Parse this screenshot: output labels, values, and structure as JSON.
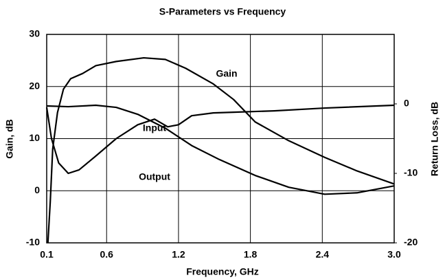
{
  "chart_data": {
    "type": "line",
    "title": "S-Parameters vs Frequency",
    "x_label": "Frequency, GHz",
    "y_label": "Gain, dB",
    "y2_label": "Return Loss, dB",
    "xlim": [
      0.1,
      3.0
    ],
    "xticks": [
      0.1,
      0.6,
      1.2,
      1.8,
      2.4,
      {
        "value": 3.0,
        "label": "3.0"
      }
    ],
    "ylim": [
      -10,
      30
    ],
    "yticks": [
      -10,
      0,
      10,
      20,
      30
    ],
    "y2lim": [
      -20,
      10
    ],
    "y2ticks": [
      -20,
      -10,
      0
    ],
    "grid": true,
    "series": [
      {
        "name": "Gain",
        "color": "#000000",
        "x": [
          0.11,
          0.13,
          0.15,
          0.19,
          0.24,
          0.3,
          0.4,
          0.51,
          0.68,
          0.91,
          1.09,
          1.26,
          1.49,
          1.66,
          1.84,
          2.12,
          2.42,
          2.69,
          3.0
        ],
        "values": [
          -10,
          -2,
          8,
          15,
          19.5,
          21.5,
          22.5,
          24,
          24.8,
          25.5,
          25.2,
          23.5,
          20.5,
          17.5,
          13.2,
          9.6,
          6.4,
          3.8,
          1.3
        ]
      },
      {
        "name": "Input",
        "color": "#000000",
        "axis": "y2",
        "x": [
          0.1,
          0.28,
          0.51,
          0.68,
          0.86,
          1.09,
          1.31,
          1.54,
          1.84,
          2.12,
          2.42,
          2.69,
          3.0
        ],
        "values": [
          -0.3,
          -0.4,
          -0.2,
          -0.5,
          -1.5,
          -3.5,
          -6,
          -8,
          -10.3,
          -12,
          -13,
          -12.8,
          -11.8
        ]
      },
      {
        "name": "Output",
        "color": "#000000",
        "axis": "y2",
        "x": [
          0.1,
          0.14,
          0.2,
          0.28,
          0.37,
          0.51,
          0.68,
          0.86,
          1.0,
          1.11,
          1.2,
          1.31,
          1.49,
          1.66,
          2.0,
          2.42,
          3.0
        ],
        "values": [
          -0.5,
          -5,
          -8.5,
          -10,
          -9.5,
          -7.5,
          -5,
          -3,
          -2.2,
          -3.3,
          -3,
          -1.7,
          -1.3,
          -1.2,
          -1.0,
          -0.6,
          -0.2
        ]
      }
    ]
  }
}
